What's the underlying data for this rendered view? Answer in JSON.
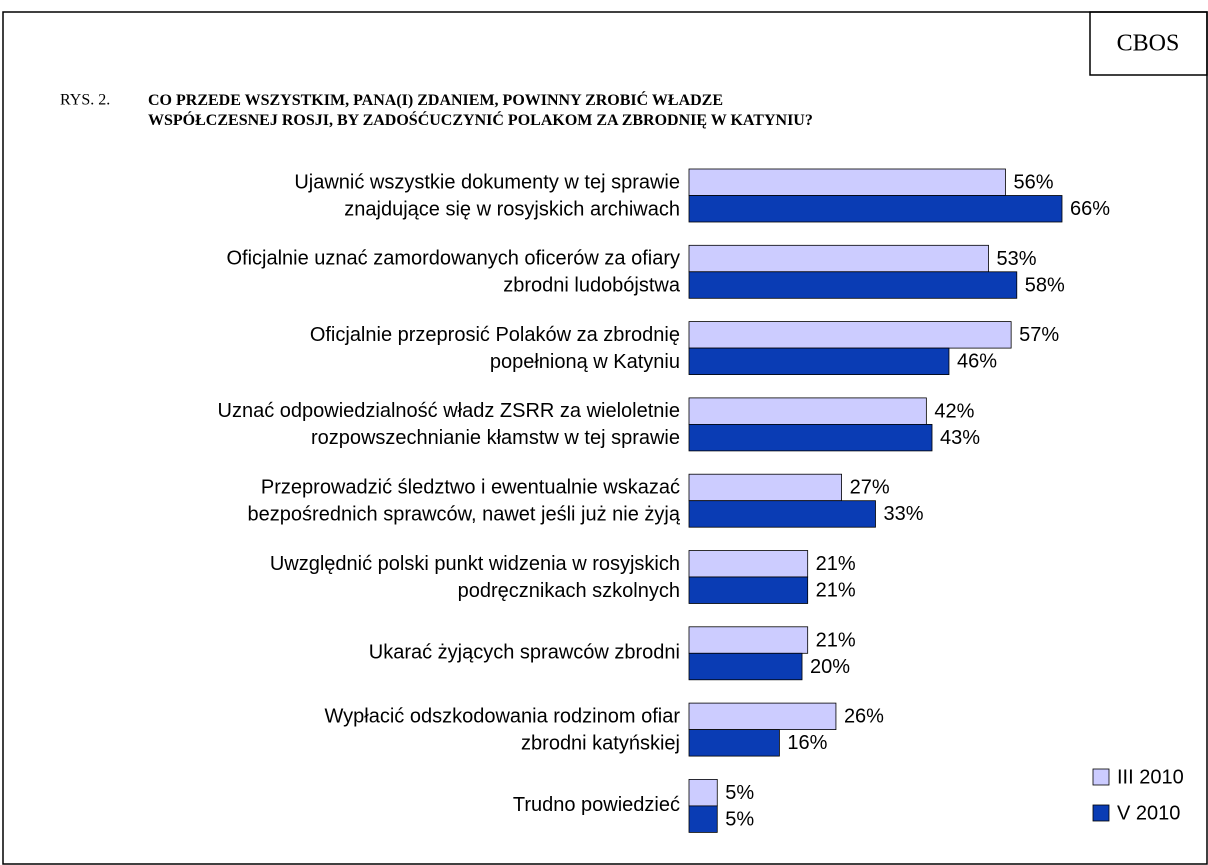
{
  "chart_data": {
    "type": "barh",
    "source": "CBOS",
    "figure_label": "RYS. 2.",
    "title": "CO PRZEDE WSZYSTKIM, PANA(I) ZDANIEM, POWINNY ZROBIĆ WŁADZE\nWSPÓŁCZESNEJ ROSJI, BY ZADOŚĆUCZYNIĆ POLAKOM ZA ZBRODNIĘ W KATYNIU?",
    "categories": [
      "Ujawnić wszystkie dokumenty w tej sprawie\nznajdujące się w rosyjskich archiwach",
      "Oficjalnie uznać zamordowanych oficerów za ofiary\nzbrodni ludobójstwa",
      "Oficjalnie przeprosić Polaków za zbrodnię\npopełnioną w Katyniu",
      "Uznać odpowiedzialność władz ZSRR za wieloletnie\nrozpowszechnianie kłamstw w tej sprawie",
      "Przeprowadzić śledztwo i ewentualnie wskazać\nbezpośrednich sprawców, nawet jeśli już nie żyją",
      "Uwzględnić polski punkt widzenia w rosyjskich\npodręcznikach szkolnych",
      "Ukarać żyjących sprawców zbrodni",
      "Wypłacić odszkodowania rodzinom ofiar\nzbrodni katyńskiej",
      "Trudno powiedzieć"
    ],
    "series": [
      {
        "name": "III 2010",
        "color": "#ccccff",
        "values": [
          56,
          53,
          57,
          42,
          27,
          21,
          21,
          26,
          5
        ],
        "value_labels": [
          "56%",
          "53%",
          "57%",
          "42%",
          "27%",
          "21%",
          "21%",
          "26%",
          "5%"
        ]
      },
      {
        "name": "V 2010",
        "color": "#0a3cb4",
        "values": [
          66,
          58,
          46,
          43,
          33,
          21,
          20,
          16,
          5
        ],
        "value_labels": [
          "66%",
          "58%",
          "46%",
          "43%",
          "33%",
          "21%",
          "20%",
          "16%",
          "5%"
        ]
      }
    ],
    "legend": "bottom-right"
  }
}
